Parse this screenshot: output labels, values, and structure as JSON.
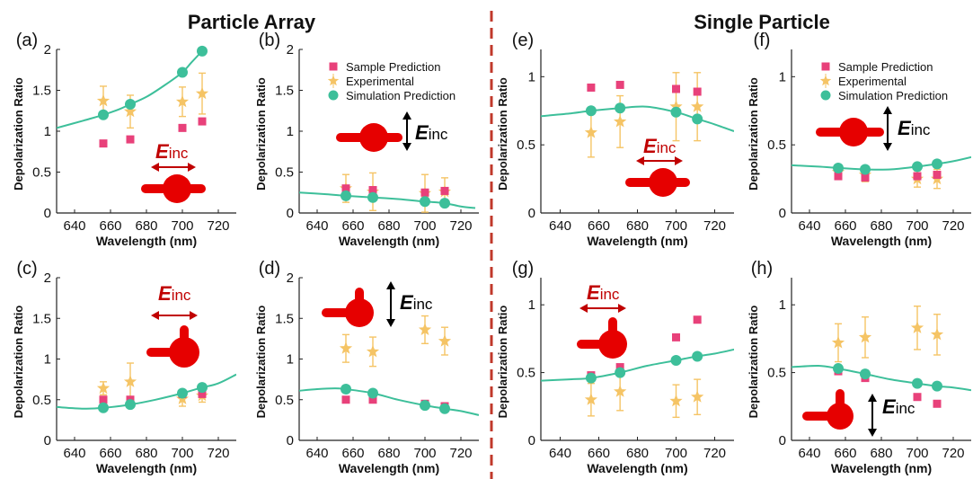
{
  "headers": {
    "left": "Particle Array",
    "right": "Single Particle"
  },
  "colors": {
    "sample": "#e8417a",
    "experimental": "#f5c465",
    "simulation": "#3dbf9a",
    "arrow_red": "#c00000",
    "particle": "#e60000",
    "divider": "#c0392b"
  },
  "legend": {
    "sample": "Sample Prediction",
    "experimental": "Experimental",
    "simulation": "Simulation Prediction"
  },
  "einc": {
    "main": "E",
    "sub": "inc"
  },
  "axes": {
    "xlabel": "Wavelength (nm)",
    "ylabel": "Depolarization Ratio"
  },
  "chart_data": [
    {
      "panel": "a",
      "label": "(a)",
      "type": "scatter",
      "xlim": [
        630,
        730
      ],
      "ylim": [
        0,
        2
      ],
      "xticks": [
        640,
        660,
        680,
        700,
        720
      ],
      "yticks": [
        0,
        0.5,
        1,
        1.5,
        2
      ],
      "series": [
        {
          "name": "Sample Prediction",
          "x": [
            656,
            671,
            700,
            711
          ],
          "y": [
            0.85,
            0.9,
            1.04,
            1.12
          ]
        },
        {
          "name": "Experimental",
          "x": [
            656,
            671,
            700,
            711
          ],
          "y": [
            1.37,
            1.24,
            1.36,
            1.46
          ],
          "err": [
            0.18,
            0.2,
            0.18,
            0.25
          ]
        },
        {
          "name": "Simulation Prediction",
          "x": [
            656,
            671,
            700,
            711
          ],
          "y": [
            1.2,
            1.33,
            1.72,
            1.98
          ]
        }
      ],
      "curve": {
        "x": [
          630,
          645,
          656,
          665,
          671,
          680,
          690,
          700,
          705,
          711
        ],
        "y": [
          1.04,
          1.13,
          1.2,
          1.27,
          1.33,
          1.42,
          1.56,
          1.72,
          1.84,
          1.98
        ]
      },
      "legend_shown": false,
      "einc_direction": "horizontal"
    },
    {
      "panel": "b",
      "label": "(b)",
      "type": "scatter",
      "xlim": [
        630,
        730
      ],
      "ylim": [
        0,
        2
      ],
      "xticks": [
        640,
        660,
        680,
        700,
        720
      ],
      "yticks": [
        0,
        0.5,
        1,
        1.5,
        2
      ],
      "series": [
        {
          "name": "Sample Prediction",
          "x": [
            656,
            671,
            700,
            711
          ],
          "y": [
            0.3,
            0.28,
            0.25,
            0.27
          ]
        },
        {
          "name": "Experimental",
          "x": [
            656,
            671,
            700,
            711
          ],
          "y": [
            0.3,
            0.26,
            0.24,
            0.26
          ],
          "err": [
            0.17,
            0.23,
            0.23,
            0.17
          ]
        },
        {
          "name": "Simulation Prediction",
          "x": [
            656,
            671,
            700,
            711
          ],
          "y": [
            0.21,
            0.19,
            0.14,
            0.12
          ]
        }
      ],
      "curve": {
        "x": [
          630,
          645,
          656,
          671,
          685,
          700,
          711,
          720,
          728
        ],
        "y": [
          0.25,
          0.23,
          0.21,
          0.19,
          0.17,
          0.14,
          0.12,
          0.08,
          0.06
        ]
      },
      "legend_shown": true,
      "einc_direction": "vertical"
    },
    {
      "panel": "c",
      "label": "(c)",
      "type": "scatter",
      "xlim": [
        630,
        730
      ],
      "ylim": [
        0,
        2
      ],
      "xticks": [
        640,
        660,
        680,
        700,
        720
      ],
      "yticks": [
        0,
        0.5,
        1,
        1.5,
        2
      ],
      "series": [
        {
          "name": "Sample Prediction",
          "x": [
            656,
            671,
            700,
            711
          ],
          "y": [
            0.5,
            0.5,
            0.57,
            0.57
          ]
        },
        {
          "name": "Experimental",
          "x": [
            656,
            671,
            700,
            711
          ],
          "y": [
            0.64,
            0.72,
            0.51,
            0.55
          ],
          "err": [
            0.08,
            0.23,
            0.09,
            0.08
          ]
        },
        {
          "name": "Simulation Prediction",
          "x": [
            656,
            671,
            700,
            711
          ],
          "y": [
            0.4,
            0.44,
            0.58,
            0.65
          ]
        }
      ],
      "curve": {
        "x": [
          630,
          645,
          656,
          671,
          685,
          700,
          711,
          720,
          730
        ],
        "y": [
          0.41,
          0.39,
          0.4,
          0.44,
          0.5,
          0.58,
          0.65,
          0.7,
          0.81
        ]
      },
      "legend_shown": false,
      "einc_direction": "horizontal"
    },
    {
      "panel": "d",
      "label": "(d)",
      "type": "scatter",
      "xlim": [
        630,
        730
      ],
      "ylim": [
        0,
        2
      ],
      "xticks": [
        640,
        660,
        680,
        700,
        720
      ],
      "yticks": [
        0,
        0.5,
        1,
        1.5,
        2
      ],
      "series": [
        {
          "name": "Sample Prediction",
          "x": [
            656,
            671,
            700,
            711
          ],
          "y": [
            0.5,
            0.5,
            0.45,
            0.42
          ]
        },
        {
          "name": "Experimental",
          "x": [
            656,
            671,
            700,
            711
          ],
          "y": [
            1.13,
            1.09,
            1.36,
            1.22
          ],
          "err": [
            0.17,
            0.18,
            0.17,
            0.17
          ]
        },
        {
          "name": "Simulation Prediction",
          "x": [
            656,
            671,
            700,
            711
          ],
          "y": [
            0.63,
            0.58,
            0.43,
            0.39
          ]
        }
      ],
      "curve": {
        "x": [
          630,
          640,
          650,
          656,
          671,
          685,
          700,
          711,
          720,
          730
        ],
        "y": [
          0.61,
          0.63,
          0.64,
          0.63,
          0.58,
          0.5,
          0.43,
          0.39,
          0.36,
          0.31
        ]
      },
      "legend_shown": false,
      "einc_direction": "vertical"
    },
    {
      "panel": "e",
      "label": "(e)",
      "type": "scatter",
      "xlim": [
        630,
        730
      ],
      "ylim": [
        0,
        1.2
      ],
      "xticks": [
        640,
        660,
        680,
        700,
        720
      ],
      "yticks": [
        0,
        0.5,
        1
      ],
      "series": [
        {
          "name": "Sample Prediction",
          "x": [
            656,
            671,
            700,
            711
          ],
          "y": [
            0.92,
            0.94,
            0.91,
            0.89
          ]
        },
        {
          "name": "Experimental",
          "x": [
            656,
            671,
            700,
            711
          ],
          "y": [
            0.59,
            0.67,
            0.78,
            0.78
          ],
          "err": [
            0.18,
            0.19,
            0.25,
            0.25
          ]
        },
        {
          "name": "Simulation Prediction",
          "x": [
            656,
            671,
            700,
            711
          ],
          "y": [
            0.75,
            0.77,
            0.74,
            0.69
          ]
        }
      ],
      "curve": {
        "x": [
          630,
          645,
          656,
          671,
          685,
          700,
          711,
          720,
          730
        ],
        "y": [
          0.71,
          0.73,
          0.75,
          0.77,
          0.78,
          0.74,
          0.69,
          0.65,
          0.6
        ]
      },
      "legend_shown": false,
      "einc_direction": "horizontal"
    },
    {
      "panel": "f",
      "label": "(f)",
      "type": "scatter",
      "xlim": [
        630,
        730
      ],
      "ylim": [
        0,
        1.2
      ],
      "xticks": [
        640,
        660,
        680,
        700,
        720
      ],
      "yticks": [
        0,
        0.5,
        1
      ],
      "series": [
        {
          "name": "Sample Prediction",
          "x": [
            656,
            671,
            700,
            711
          ],
          "y": [
            0.27,
            0.26,
            0.27,
            0.28
          ]
        },
        {
          "name": "Experimental",
          "x": [
            656,
            671,
            700,
            711
          ],
          "y": [
            0.3,
            0.28,
            0.25,
            0.25
          ],
          "err": [
            0.05,
            0.05,
            0.06,
            0.07
          ]
        },
        {
          "name": "Simulation Prediction",
          "x": [
            656,
            671,
            700,
            711
          ],
          "y": [
            0.33,
            0.32,
            0.34,
            0.36
          ]
        }
      ],
      "curve": {
        "x": [
          630,
          645,
          656,
          671,
          685,
          700,
          711,
          720,
          730
        ],
        "y": [
          0.35,
          0.34,
          0.33,
          0.32,
          0.32,
          0.34,
          0.36,
          0.38,
          0.41
        ]
      },
      "legend_shown": true,
      "einc_direction": "vertical"
    },
    {
      "panel": "g",
      "label": "(g)",
      "type": "scatter",
      "xlim": [
        630,
        730
      ],
      "ylim": [
        0,
        1.2
      ],
      "xticks": [
        640,
        660,
        680,
        700,
        720
      ],
      "yticks": [
        0,
        0.5,
        1
      ],
      "series": [
        {
          "name": "Sample Prediction",
          "x": [
            656,
            671,
            700,
            711
          ],
          "y": [
            0.48,
            0.54,
            0.76,
            0.89
          ]
        },
        {
          "name": "Experimental",
          "x": [
            656,
            671,
            700,
            711
          ],
          "y": [
            0.3,
            0.36,
            0.29,
            0.32
          ],
          "err": [
            0.12,
            0.14,
            0.12,
            0.13
          ]
        },
        {
          "name": "Simulation Prediction",
          "x": [
            656,
            671,
            700,
            711
          ],
          "y": [
            0.46,
            0.5,
            0.59,
            0.62
          ]
        }
      ],
      "curve": {
        "x": [
          630,
          645,
          656,
          671,
          685,
          700,
          711,
          720,
          730
        ],
        "y": [
          0.44,
          0.45,
          0.46,
          0.5,
          0.55,
          0.59,
          0.62,
          0.64,
          0.67
        ]
      },
      "legend_shown": false,
      "einc_direction": "horizontal"
    },
    {
      "panel": "h",
      "label": "(h)",
      "type": "scatter",
      "xlim": [
        630,
        730
      ],
      "ylim": [
        0,
        1.2
      ],
      "xticks": [
        640,
        660,
        680,
        700,
        720
      ],
      "yticks": [
        0,
        0.5,
        1
      ],
      "series": [
        {
          "name": "Sample Prediction",
          "x": [
            656,
            671,
            700,
            711
          ],
          "y": [
            0.51,
            0.46,
            0.32,
            0.27
          ]
        },
        {
          "name": "Experimental",
          "x": [
            656,
            671,
            700,
            711
          ],
          "y": [
            0.72,
            0.76,
            0.83,
            0.78
          ],
          "err": [
            0.14,
            0.15,
            0.16,
            0.15
          ]
        },
        {
          "name": "Simulation Prediction",
          "x": [
            656,
            671,
            700,
            711
          ],
          "y": [
            0.53,
            0.49,
            0.42,
            0.4
          ]
        }
      ],
      "curve": {
        "x": [
          630,
          645,
          656,
          671,
          685,
          700,
          711,
          720,
          730
        ],
        "y": [
          0.54,
          0.55,
          0.53,
          0.49,
          0.45,
          0.42,
          0.4,
          0.39,
          0.37
        ]
      },
      "legend_shown": false,
      "einc_direction": "vertical"
    }
  ]
}
